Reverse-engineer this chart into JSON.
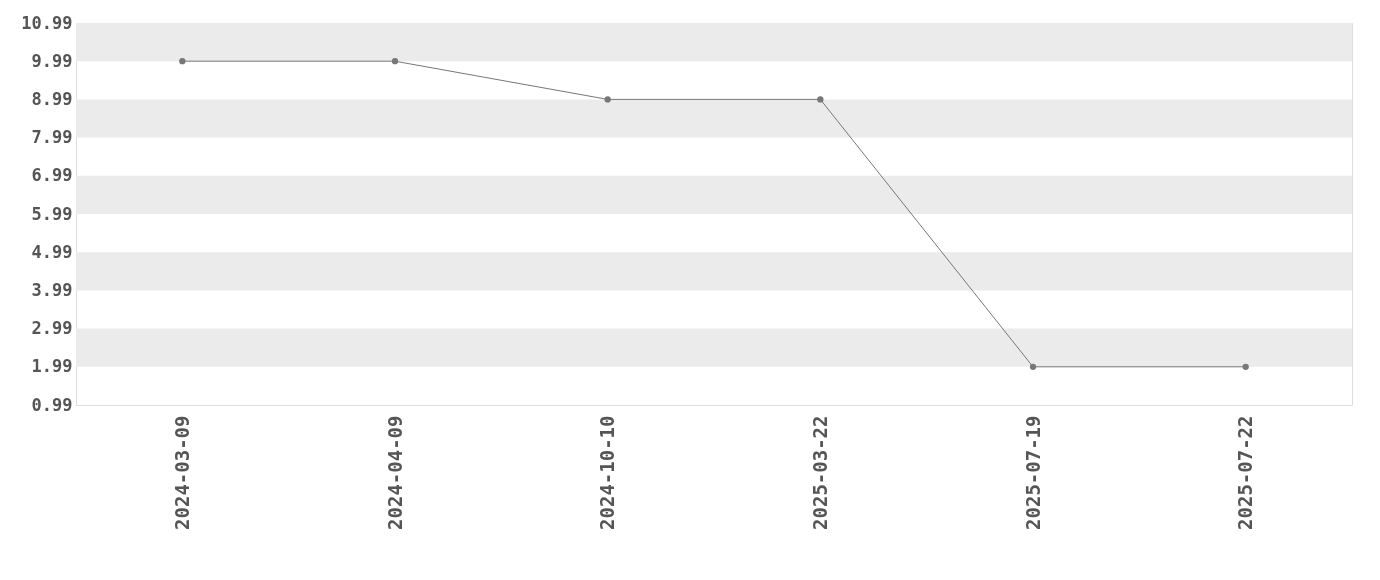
{
  "chart_data": {
    "type": "line",
    "categories": [
      "2024-03-09",
      "2024-04-09",
      "2024-10-10",
      "2025-03-22",
      "2025-07-19",
      "2025-07-22"
    ],
    "series": [
      {
        "color": "#777777",
        "values": [
          9.99,
          9.99,
          8.99,
          8.99,
          1.99,
          1.99
        ]
      }
    ],
    "ylim": [
      0.99,
      10.99
    ],
    "yticks": [
      0.99,
      1.99,
      2.99,
      3.99,
      4.99,
      5.99,
      6.99,
      7.99,
      8.99,
      9.99,
      10.99
    ],
    "bands": [
      {
        "axis": "y",
        "from": 9.99,
        "to": 10.99,
        "color": "#ebebeb"
      },
      {
        "axis": "y",
        "from": 7.99,
        "to": 8.99,
        "color": "#ebebeb"
      },
      {
        "axis": "y",
        "from": 5.99,
        "to": 6.99,
        "color": "#ebebeb"
      },
      {
        "axis": "y",
        "from": 3.99,
        "to": 4.99,
        "color": "#ebebeb"
      },
      {
        "axis": "y",
        "from": 1.99,
        "to": 2.99,
        "color": "#ebebeb"
      }
    ],
    "marker": "circle",
    "line_style": "solid",
    "grid": false
  }
}
